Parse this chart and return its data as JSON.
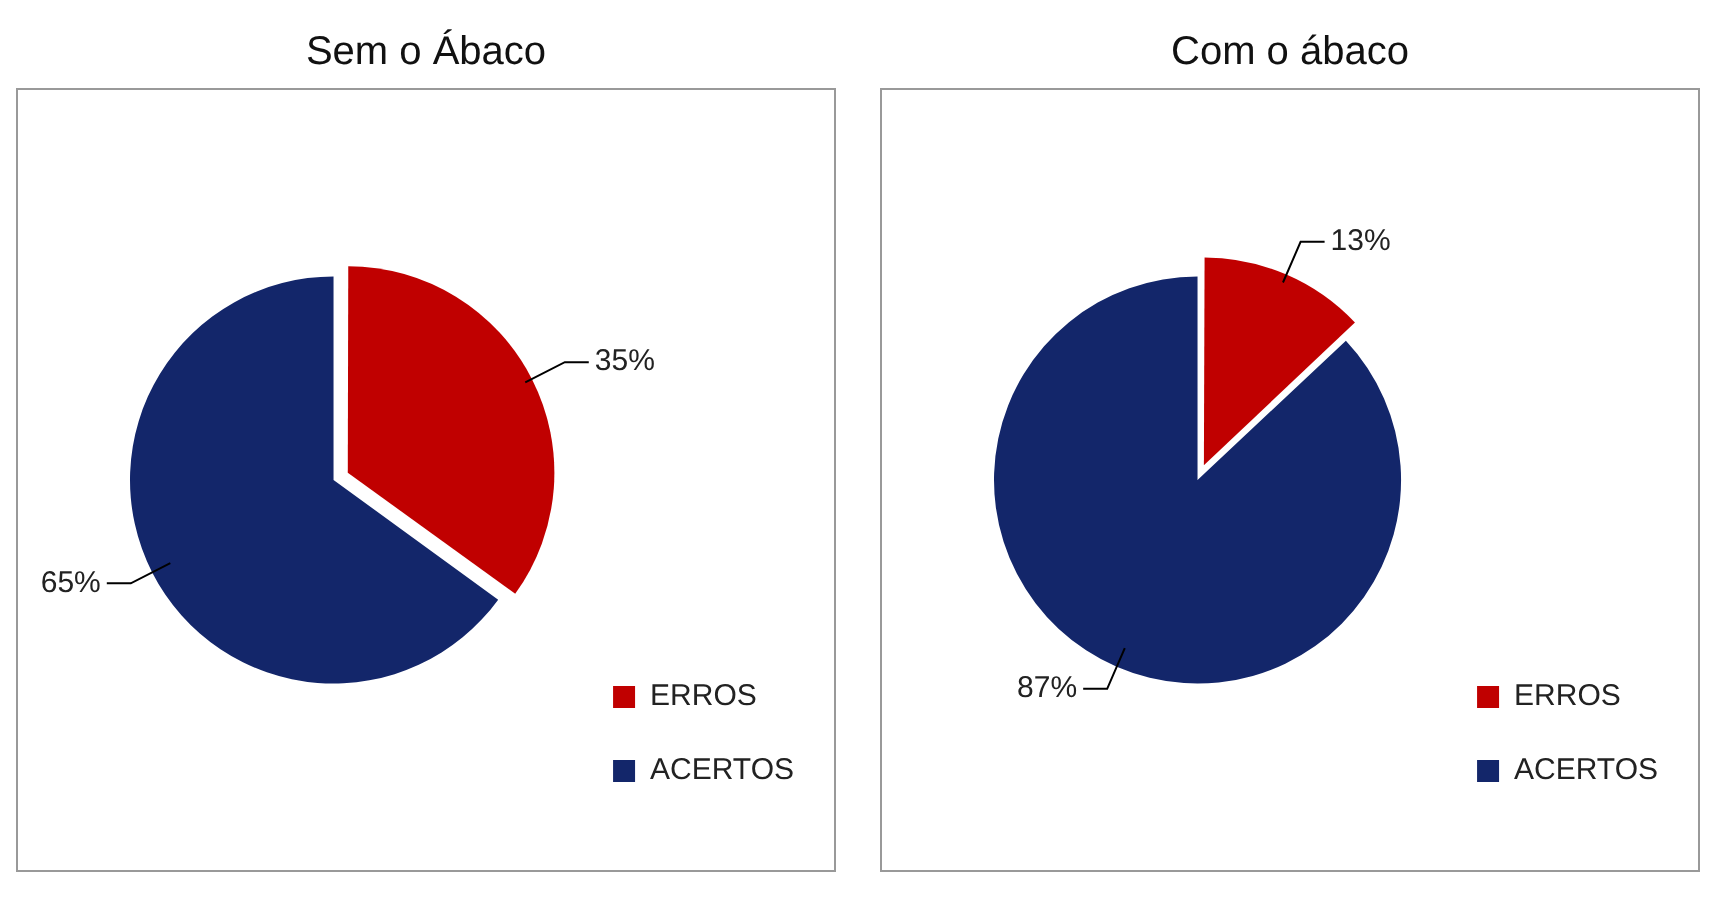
{
  "chart_data": [
    {
      "type": "pie",
      "title": "Sem o Ábaco",
      "categories": [
        "ERROS",
        "ACERTOS"
      ],
      "values": [
        35,
        65
      ],
      "colors": [
        "#c00000",
        "#13266a"
      ],
      "value_labels": [
        "35%",
        "65%"
      ],
      "legend": "bottom right"
    },
    {
      "type": "pie",
      "title": "Com o ábaco",
      "categories": [
        "ERROS",
        "ACERTOS"
      ],
      "values": [
        13,
        87
      ],
      "colors": [
        "#c00000",
        "#13266a"
      ],
      "value_labels": [
        "13%",
        "87%"
      ],
      "legend": "bottom right"
    }
  ]
}
